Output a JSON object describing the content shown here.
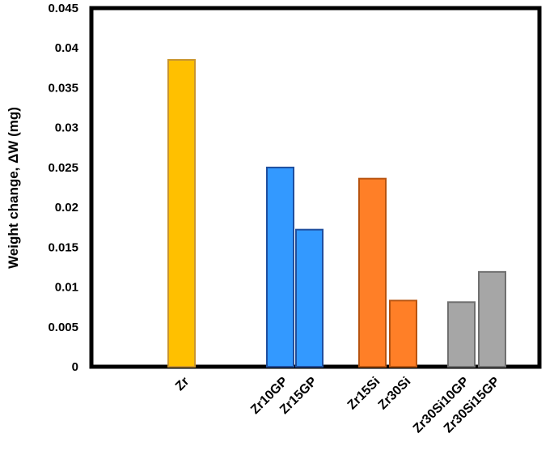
{
  "chart_data": {
    "type": "bar",
    "title": "",
    "xlabel": "",
    "ylabel": "Weight change, ΔW (mg)",
    "ylim": [
      0,
      0.045
    ],
    "yticks": [
      "0",
      "0.005",
      "0.01",
      "0.015",
      "0.02",
      "0.025",
      "0.03",
      "0.035",
      "0.04",
      "0.045"
    ],
    "grid": false,
    "legend": "none",
    "categories": [
      "Zr",
      "Zr10GP",
      "Zr15GP",
      "Zr15Si",
      "Zr30Si",
      "Zr30Si10GP",
      "Zr30Si15GP"
    ],
    "values": [
      0.0385,
      0.025,
      0.0172,
      0.0236,
      0.0083,
      0.0081,
      0.0119
    ],
    "colors": [
      "#FFC000",
      "#3399FF",
      "#3399FF",
      "#FF7F27",
      "#FF7F27",
      "#A6A6A6",
      "#A6A6A6"
    ],
    "edge_colors": [
      "#C9952E",
      "#1F4E9E",
      "#1F4E9E",
      "#B85410",
      "#B85410",
      "#707070",
      "#707070"
    ]
  }
}
